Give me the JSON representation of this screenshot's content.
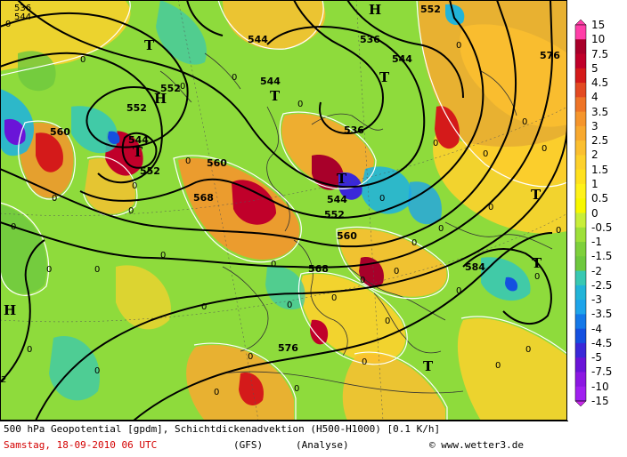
{
  "title": "500 hPa Geopotential [gpdm], Schichtdickenadvektion (H500-H1000) [0.1 K/h]",
  "date_line": "Samstag, 18-09-2010  06 UTC",
  "model": "(GFS)",
  "analysis": "(Analyse)",
  "credit": "© www.wetter3.de",
  "legend": {
    "ticks": [
      "15",
      "10",
      "7.5",
      "5",
      "4.5",
      "4",
      "3.5",
      "3",
      "2.5",
      "2",
      "1.5",
      "1",
      "0.5",
      "0",
      "-0.5",
      "-1",
      "-1.5",
      "-2",
      "-2.5",
      "-3",
      "-3.5",
      "-4",
      "-4.5",
      "-5",
      "-7.5",
      "-10",
      "-15"
    ],
    "colors": [
      "#ff3fa8",
      "#a8002a",
      "#c0002a",
      "#d41a1a",
      "#e34a22",
      "#ee7427",
      "#f5952c",
      "#f8a92f",
      "#fbbf30",
      "#fdd12c",
      "#ffe11f",
      "#fff21a",
      "#f8f800",
      "#c8ee3a",
      "#9ee03a",
      "#7ed03c",
      "#6ec83e",
      "#38c8b2",
      "#22b4d8",
      "#1ea4ea",
      "#1478e8",
      "#1450e0",
      "#3a28d8",
      "#6a14d8",
      "#8c18e2",
      "#a020f0",
      "#c828ea"
    ]
  },
  "map": {
    "contour_values": [
      "536",
      "544",
      "552",
      "560",
      "568",
      "576",
      "584",
      "552",
      "552",
      "552",
      "552",
      "544",
      "544",
      "544",
      "544",
      "536",
      "560",
      "560",
      "568",
      "568",
      "576",
      "584"
    ],
    "centers": [
      {
        "label": "T"
      },
      {
        "label": "T"
      },
      {
        "label": "T"
      },
      {
        "label": "T"
      },
      {
        "label": "T"
      },
      {
        "label": "T"
      },
      {
        "label": "T"
      },
      {
        "label": "T"
      },
      {
        "label": "H"
      },
      {
        "label": "H"
      },
      {
        "label": "H"
      }
    ],
    "zero_labels": [
      "0",
      "0",
      "0",
      "0",
      "0",
      "0",
      "0",
      "0",
      "0",
      "0",
      "0",
      "0",
      "0",
      "0",
      "0",
      "0",
      "0",
      "0",
      "0",
      "0",
      "0",
      "0",
      "0",
      "0",
      "0",
      "0",
      "0",
      "0",
      "0",
      "0",
      "0",
      "0",
      "0",
      "0",
      "0",
      "0",
      "0",
      "0",
      "0",
      "0"
    ],
    "edge_labels": [
      "536",
      "544",
      "2"
    ]
  }
}
